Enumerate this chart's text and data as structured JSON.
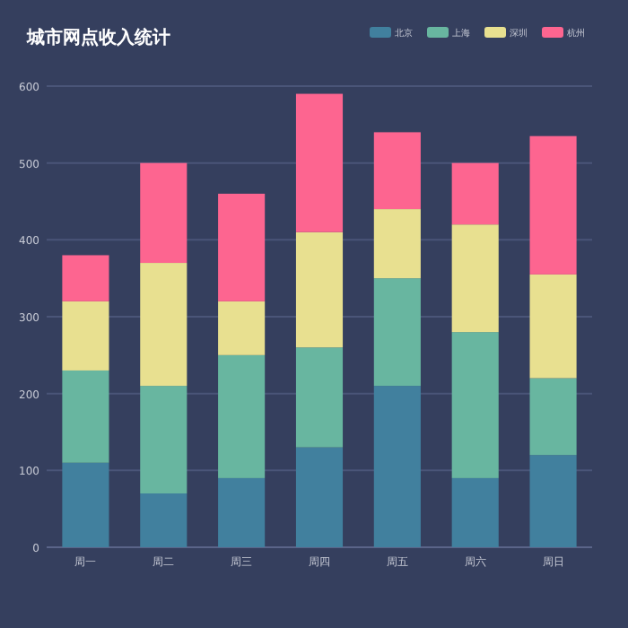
{
  "chart_data": {
    "type": "bar",
    "stacked": true,
    "title": "城市网点收入统计",
    "categories": [
      "周一",
      "周二",
      "周三",
      "周四",
      "周五",
      "周六",
      "周日"
    ],
    "series": [
      {
        "name": "北京",
        "color": "#41809e",
        "values": [
          110,
          70,
          90,
          130,
          210,
          90,
          120
        ]
      },
      {
        "name": "上海",
        "color": "#68b6a0",
        "values": [
          120,
          140,
          160,
          130,
          140,
          190,
          100
        ]
      },
      {
        "name": "深圳",
        "color": "#e8e090",
        "values": [
          90,
          160,
          70,
          150,
          90,
          140,
          135
        ]
      },
      {
        "name": "杭州",
        "color": "#fd6590",
        "values": [
          60,
          130,
          140,
          180,
          100,
          80,
          180
        ]
      }
    ],
    "ylim": [
      0,
      600
    ],
    "yticks": [
      0,
      100,
      200,
      300,
      400,
      500,
      600
    ],
    "grid": "y",
    "legend": "top right"
  }
}
